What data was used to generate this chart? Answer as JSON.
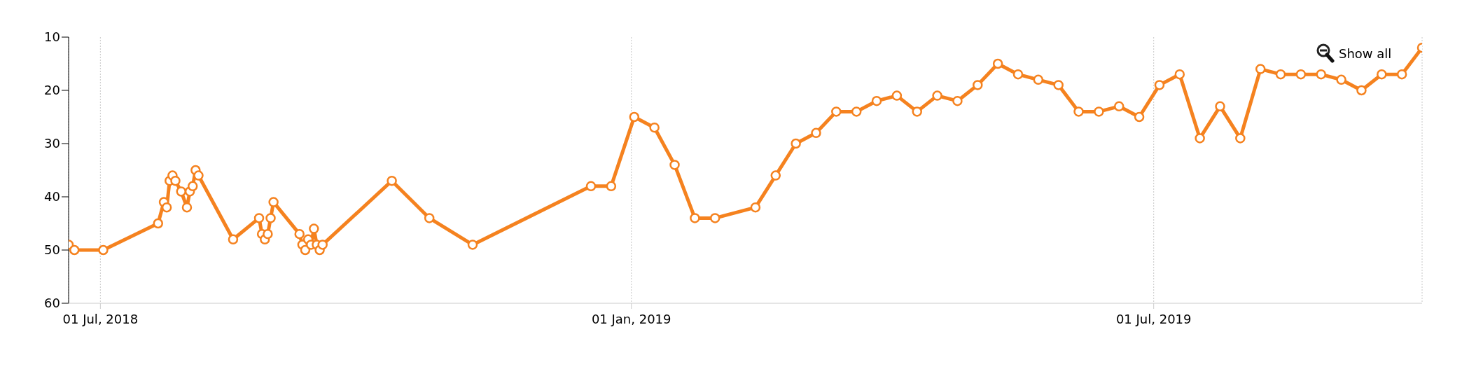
{
  "chart_data": {
    "type": "line",
    "x": [
      "2018-06-20",
      "2018-06-22",
      "2018-07-02",
      "2018-07-21",
      "2018-07-23",
      "2018-07-24",
      "2018-07-25",
      "2018-07-26",
      "2018-07-27",
      "2018-07-29",
      "2018-07-31",
      "2018-08-01",
      "2018-08-02",
      "2018-08-03",
      "2018-08-04",
      "2018-08-16",
      "2018-08-25",
      "2018-08-26",
      "2018-08-27",
      "2018-08-28",
      "2018-08-29",
      "2018-08-30",
      "2018-09-08",
      "2018-09-09",
      "2018-09-10",
      "2018-09-11",
      "2018-09-12",
      "2018-09-13",
      "2018-09-14",
      "2018-09-15",
      "2018-09-16",
      "2018-10-10",
      "2018-10-23",
      "2018-11-07",
      "2018-12-18",
      "2018-12-25",
      "2019-01-02",
      "2019-01-09",
      "2019-01-16",
      "2019-01-23",
      "2019-01-30",
      "2019-02-13",
      "2019-02-20",
      "2019-02-27",
      "2019-03-06",
      "2019-03-13",
      "2019-03-20",
      "2019-03-27",
      "2019-04-03",
      "2019-04-10",
      "2019-04-17",
      "2019-04-24",
      "2019-05-01",
      "2019-05-08",
      "2019-05-15",
      "2019-05-22",
      "2019-05-29",
      "2019-06-05",
      "2019-06-12",
      "2019-06-19",
      "2019-06-26",
      "2019-07-03",
      "2019-07-10",
      "2019-07-17",
      "2019-07-24",
      "2019-07-31",
      "2019-08-07",
      "2019-08-14",
      "2019-08-21",
      "2019-08-28",
      "2019-09-04",
      "2019-09-11",
      "2019-09-18",
      "2019-09-25",
      "2019-10-02"
    ],
    "series": [
      {
        "color": "#f5821f",
        "values": [
          49,
          50,
          50,
          45,
          41,
          42,
          37,
          36,
          37,
          39,
          42,
          39,
          38,
          35,
          36,
          48,
          44,
          47,
          48,
          47,
          44,
          41,
          47,
          49,
          50,
          48,
          49,
          46,
          49,
          50,
          49,
          37,
          44,
          49,
          38,
          38,
          25,
          27,
          34,
          44,
          44,
          42,
          36,
          30,
          28,
          24,
          24,
          22,
          21,
          24,
          21,
          22,
          19,
          15,
          17,
          18,
          19,
          24,
          24,
          23,
          25,
          19,
          17,
          29,
          23,
          29,
          16,
          17,
          17,
          17,
          18,
          20,
          17,
          17,
          12
        ]
      }
    ],
    "xlim": [
      "2018-06-20",
      "2019-10-02"
    ],
    "xticks": [
      {
        "value": "2018-07-01",
        "label": "01 Jul, 2018"
      },
      {
        "value": "2019-01-01",
        "label": "01 Jan, 2019"
      },
      {
        "value": "2019-07-01",
        "label": "01 Jul, 2019"
      }
    ],
    "ylim": [
      60,
      10
    ],
    "yticks": [
      10,
      20,
      30,
      40,
      50,
      60
    ],
    "grid": "x",
    "marker": "circle",
    "line_style": "solid",
    "annotations": [
      "Show all"
    ]
  }
}
